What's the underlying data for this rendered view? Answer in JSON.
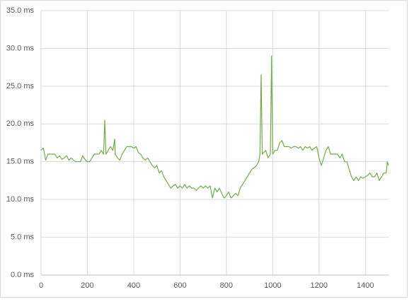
{
  "chart_data": {
    "type": "line",
    "color": "#70ad47",
    "grid": true,
    "xlim": [
      0,
      1500
    ],
    "xticks": [
      0,
      200,
      400,
      600,
      800,
      1000,
      1200,
      1400
    ],
    "ylim": [
      0,
      35
    ],
    "yticks": [
      {
        "value": 0,
        "label": "0.0 ms"
      },
      {
        "value": 5,
        "label": "5.0 ms"
      },
      {
        "value": 10,
        "label": "10.0 ms"
      },
      {
        "value": 15,
        "label": "15.0 ms"
      },
      {
        "value": 20,
        "label": "20.0 ms"
      },
      {
        "value": 25,
        "label": "25.0 ms"
      },
      {
        "value": 30,
        "label": "30.0 ms"
      },
      {
        "value": 35,
        "label": "35.0 ms"
      }
    ],
    "x": [
      0,
      10,
      20,
      30,
      40,
      50,
      60,
      70,
      80,
      90,
      100,
      110,
      120,
      130,
      140,
      150,
      160,
      170,
      180,
      190,
      200,
      210,
      220,
      230,
      240,
      250,
      260,
      270,
      275,
      280,
      290,
      300,
      310,
      318,
      320,
      330,
      340,
      350,
      360,
      370,
      380,
      390,
      400,
      410,
      420,
      430,
      440,
      450,
      460,
      470,
      480,
      490,
      500,
      510,
      520,
      530,
      540,
      550,
      560,
      570,
      580,
      590,
      600,
      610,
      620,
      630,
      640,
      650,
      660,
      670,
      680,
      690,
      700,
      710,
      720,
      730,
      740,
      750,
      760,
      770,
      780,
      790,
      800,
      810,
      820,
      830,
      840,
      850,
      860,
      870,
      880,
      890,
      900,
      910,
      920,
      930,
      940,
      945,
      950,
      955,
      960,
      970,
      980,
      990,
      995,
      1000,
      1010,
      1020,
      1030,
      1040,
      1050,
      1060,
      1070,
      1080,
      1090,
      1100,
      1110,
      1120,
      1130,
      1140,
      1150,
      1160,
      1170,
      1180,
      1190,
      1200,
      1210,
      1220,
      1230,
      1240,
      1250,
      1260,
      1270,
      1280,
      1290,
      1300,
      1310,
      1320,
      1330,
      1340,
      1350,
      1360,
      1370,
      1380,
      1390,
      1400,
      1410,
      1420,
      1430,
      1440,
      1450,
      1460,
      1470,
      1480,
      1490,
      1495,
      1500
    ],
    "values": [
      16.5,
      16.8,
      15.2,
      16,
      16,
      16,
      16,
      15.5,
      15.8,
      15.3,
      15.5,
      15.8,
      15.2,
      15.5,
      15.2,
      15,
      15,
      15,
      15.8,
      15.3,
      15,
      15,
      15.5,
      16,
      16,
      16,
      16.5,
      16,
      20.5,
      16,
      16.5,
      17,
      16.5,
      18,
      16,
      15.5,
      15.2,
      16,
      16.5,
      17,
      17,
      17,
      16.8,
      17,
      16.2,
      16,
      15.5,
      15.2,
      15.5,
      15,
      14.5,
      14.2,
      14.5,
      13.5,
      13.8,
      13,
      12.5,
      12,
      11.5,
      11.8,
      12,
      11.5,
      11.8,
      11.5,
      12,
      11.5,
      11.8,
      11.5,
      11.5,
      11.2,
      11.5,
      11.8,
      11.5,
      11.8,
      11.5,
      11.8,
      10.2,
      11.5,
      11,
      11.5,
      10.8,
      10.2,
      10.5,
      11,
      10.2,
      10.5,
      10.8,
      10.5,
      11.5,
      12,
      12.5,
      13,
      13.5,
      14,
      14.2,
      14.5,
      15,
      16,
      26.5,
      16,
      16.2,
      16.5,
      15.5,
      16,
      29,
      16,
      16.5,
      16.5,
      17.5,
      17.8,
      17,
      17,
      17,
      16.8,
      17,
      17,
      16.8,
      17,
      16.5,
      17,
      16.8,
      17,
      16.5,
      16.8,
      17,
      15.5,
      14.5,
      15.5,
      16.5,
      17,
      16,
      16,
      16,
      16,
      15.5,
      16,
      15,
      15,
      14,
      13,
      12.5,
      13,
      12.5,
      13,
      12.8,
      13,
      13.2,
      13.5,
      13,
      13,
      13.5,
      12.5,
      13,
      13.5,
      13.5,
      15,
      14.5
    ]
  }
}
